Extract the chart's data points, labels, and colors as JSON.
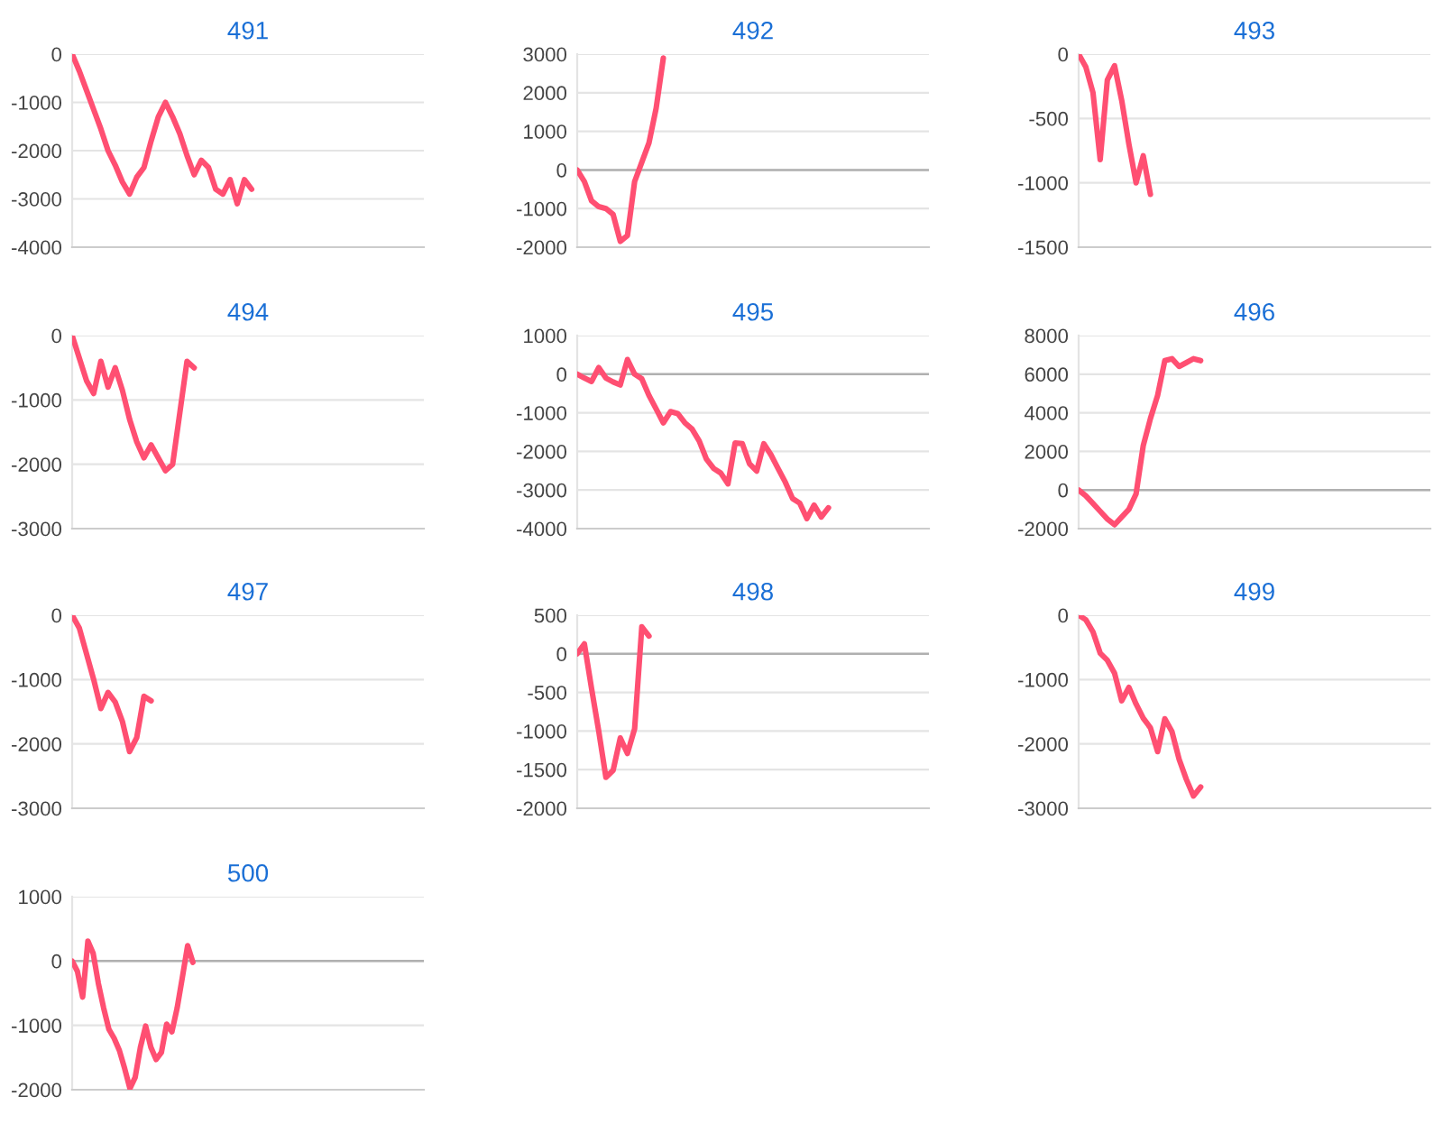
{
  "chart_data": [
    {
      "type": "line",
      "title": "491",
      "color": "#ff4f72",
      "ylim": [
        -4000,
        0
      ],
      "yticks": [
        -4000,
        -3000,
        -2000,
        -1000,
        0
      ],
      "grid": "y",
      "tick_labels": "y",
      "categories": [
        null,
        null,
        null,
        null,
        null,
        null,
        null,
        null,
        null,
        null,
        null,
        null,
        null,
        null,
        null,
        null,
        null,
        null,
        null,
        null,
        null,
        null,
        null,
        null,
        null,
        null,
        null,
        null,
        null,
        null,
        null,
        null,
        null,
        null,
        null,
        null,
        null,
        null,
        null,
        null,
        null,
        null,
        null,
        null,
        null,
        null,
        null,
        null,
        null,
        null
      ],
      "values": [
        0,
        -350,
        -750,
        -1150,
        -1550,
        -2000,
        -2300,
        -2650,
        -2900,
        -2550,
        -2350,
        -1800,
        -1300,
        -1000,
        -1300,
        -1650,
        -2100,
        -2500,
        -2200,
        -2350,
        -2800,
        -2900,
        -2600,
        -3100,
        -2600,
        -2800,
        null,
        null,
        null,
        null,
        null,
        null,
        null,
        null,
        null,
        null,
        null,
        null,
        null,
        null,
        null,
        null,
        null,
        null,
        null,
        null,
        null,
        null,
        null,
        null
      ]
    },
    {
      "type": "line",
      "title": "492",
      "color": "#ff4f72",
      "ylim": [
        -2000,
        3000
      ],
      "yticks": [
        -2000,
        -1000,
        0,
        1000,
        2000,
        3000
      ],
      "grid": "y",
      "tick_labels": "y",
      "categories": [
        null,
        null,
        null,
        null,
        null,
        null,
        null,
        null,
        null,
        null,
        null,
        null,
        null,
        null,
        null,
        null,
        null,
        null,
        null,
        null,
        null,
        null,
        null,
        null,
        null,
        null,
        null,
        null,
        null,
        null,
        null,
        null,
        null,
        null,
        null,
        null,
        null,
        null,
        null,
        null,
        null,
        null,
        null,
        null,
        null,
        null,
        null,
        null,
        null,
        null
      ],
      "values": [
        0,
        -300,
        -800,
        -950,
        -1000,
        -1150,
        -1850,
        -1700,
        -300,
        200,
        700,
        1600,
        2900,
        null,
        null,
        null,
        null,
        null,
        null,
        null,
        null,
        null,
        null,
        null,
        null,
        null,
        null,
        null,
        null,
        null,
        null,
        null,
        null,
        null,
        null,
        null,
        null,
        null,
        null,
        null,
        null,
        null,
        null,
        null,
        null,
        null,
        null,
        null,
        null,
        null
      ]
    },
    {
      "type": "line",
      "title": "493",
      "color": "#ff4f72",
      "ylim": [
        -1500,
        0
      ],
      "yticks": [
        -1500,
        -1000,
        -500,
        0
      ],
      "grid": "y",
      "tick_labels": "y",
      "categories": [
        null,
        null,
        null,
        null,
        null,
        null,
        null,
        null,
        null,
        null,
        null,
        null,
        null,
        null,
        null,
        null,
        null,
        null,
        null,
        null,
        null,
        null,
        null,
        null,
        null,
        null,
        null,
        null,
        null,
        null,
        null,
        null,
        null,
        null,
        null,
        null,
        null,
        null,
        null,
        null,
        null,
        null,
        null,
        null,
        null,
        null,
        null,
        null,
        null,
        null
      ],
      "values": [
        0,
        -100,
        -300,
        -820,
        -200,
        -90,
        -360,
        -700,
        -1000,
        -790,
        -1090,
        null,
        null,
        null,
        null,
        null,
        null,
        null,
        null,
        null,
        null,
        null,
        null,
        null,
        null,
        null,
        null,
        null,
        null,
        null,
        null,
        null,
        null,
        null,
        null,
        null,
        null,
        null,
        null,
        null,
        null,
        null,
        null,
        null,
        null,
        null,
        null,
        null,
        null,
        null
      ]
    },
    {
      "type": "line",
      "title": "494",
      "color": "#ff4f72",
      "ylim": [
        -3000,
        0
      ],
      "yticks": [
        -3000,
        -2000,
        -1000,
        0
      ],
      "grid": "y",
      "tick_labels": "y",
      "categories": [
        null,
        null,
        null,
        null,
        null,
        null,
        null,
        null,
        null,
        null,
        null,
        null,
        null,
        null,
        null,
        null,
        null,
        null,
        null,
        null,
        null,
        null,
        null,
        null,
        null,
        null,
        null,
        null,
        null,
        null,
        null,
        null,
        null,
        null,
        null,
        null,
        null,
        null,
        null,
        null,
        null,
        null,
        null,
        null,
        null,
        null,
        null,
        null,
        null,
        null
      ],
      "values": [
        0,
        -350,
        -700,
        -900,
        -400,
        -800,
        -500,
        -850,
        -1300,
        -1650,
        -1900,
        -1700,
        -1900,
        -2100,
        -2000,
        -1200,
        -400,
        -500,
        null,
        null,
        null,
        null,
        null,
        null,
        null,
        null,
        null,
        null,
        null,
        null,
        null,
        null,
        null,
        null,
        null,
        null,
        null,
        null,
        null,
        null,
        null,
        null,
        null,
        null,
        null,
        null,
        null,
        null,
        null,
        null
      ]
    },
    {
      "type": "line",
      "title": "495",
      "color": "#ff4f72",
      "ylim": [
        -4000,
        1000
      ],
      "yticks": [
        -4000,
        -3000,
        -2000,
        -1000,
        0,
        1000
      ],
      "grid": "y",
      "tick_labels": "y",
      "categories": [
        null,
        null,
        null,
        null,
        null,
        null,
        null,
        null,
        null,
        null,
        null,
        null,
        null,
        null,
        null,
        null,
        null,
        null,
        null,
        null,
        null,
        null,
        null,
        null,
        null,
        null,
        null,
        null,
        null,
        null,
        null,
        null,
        null,
        null,
        null,
        null,
        null,
        null,
        null,
        null,
        null,
        null,
        null,
        null,
        null,
        null,
        null,
        null,
        null,
        null
      ],
      "values": [
        0,
        -100,
        -190,
        170,
        -100,
        -200,
        -280,
        380,
        0,
        -120,
        -550,
        -900,
        -1260,
        -970,
        -1020,
        -1260,
        -1420,
        -1730,
        -2200,
        -2440,
        -2560,
        -2840,
        -1780,
        -1800,
        -2320,
        -2510,
        -1800,
        -2090,
        -2450,
        -2800,
        -3220,
        -3340,
        -3740,
        -3390,
        -3700,
        -3460,
        null,
        null,
        null,
        null,
        null,
        null,
        null,
        null,
        null,
        null,
        null,
        null,
        null,
        null
      ]
    },
    {
      "type": "line",
      "title": "496",
      "color": "#ff4f72",
      "ylim": [
        -2000,
        8000
      ],
      "yticks": [
        -2000,
        0,
        2000,
        4000,
        6000,
        8000
      ],
      "grid": "y",
      "tick_labels": "y",
      "categories": [
        null,
        null,
        null,
        null,
        null,
        null,
        null,
        null,
        null,
        null,
        null,
        null,
        null,
        null,
        null,
        null,
        null,
        null,
        null,
        null,
        null,
        null,
        null,
        null,
        null,
        null,
        null,
        null,
        null,
        null,
        null,
        null,
        null,
        null,
        null,
        null,
        null,
        null,
        null,
        null,
        null,
        null,
        null,
        null,
        null,
        null,
        null,
        null,
        null,
        null
      ],
      "values": [
        0,
        -300,
        -700,
        -1100,
        -1500,
        -1800,
        -1400,
        -1000,
        -200,
        2300,
        3700,
        4900,
        6700,
        6800,
        6400,
        6600,
        6800,
        6700,
        null,
        null,
        null,
        null,
        null,
        null,
        null,
        null,
        null,
        null,
        null,
        null,
        null,
        null,
        null,
        null,
        null,
        null,
        null,
        null,
        null,
        null,
        null,
        null,
        null,
        null,
        null,
        null,
        null,
        null,
        null,
        null
      ]
    },
    {
      "type": "line",
      "title": "497",
      "color": "#ff4f72",
      "ylim": [
        -3000,
        0
      ],
      "yticks": [
        -3000,
        -2000,
        -1000,
        0
      ],
      "grid": "y",
      "tick_labels": "y",
      "categories": [
        null,
        null,
        null,
        null,
        null,
        null,
        null,
        null,
        null,
        null,
        null,
        null,
        null,
        null,
        null,
        null,
        null,
        null,
        null,
        null,
        null,
        null,
        null,
        null,
        null,
        null,
        null,
        null,
        null,
        null,
        null,
        null,
        null,
        null,
        null,
        null,
        null,
        null,
        null,
        null,
        null,
        null,
        null,
        null,
        null,
        null,
        null,
        null,
        null,
        null
      ],
      "values": [
        0,
        -200,
        -600,
        -1000,
        -1450,
        -1200,
        -1350,
        -1650,
        -2120,
        -1900,
        -1260,
        -1330,
        null,
        null,
        null,
        null,
        null,
        null,
        null,
        null,
        null,
        null,
        null,
        null,
        null,
        null,
        null,
        null,
        null,
        null,
        null,
        null,
        null,
        null,
        null,
        null,
        null,
        null,
        null,
        null,
        null,
        null,
        null,
        null,
        null,
        null,
        null,
        null,
        null,
        null
      ]
    },
    {
      "type": "line",
      "title": "498",
      "color": "#ff4f72",
      "ylim": [
        -2000,
        500
      ],
      "yticks": [
        -2000,
        -1500,
        -1000,
        -500,
        0,
        500
      ],
      "grid": "y",
      "tick_labels": "y",
      "categories": [
        null,
        null,
        null,
        null,
        null,
        null,
        null,
        null,
        null,
        null,
        null,
        null,
        null,
        null,
        null,
        null,
        null,
        null,
        null,
        null,
        null,
        null,
        null,
        null,
        null,
        null,
        null,
        null,
        null,
        null,
        null,
        null,
        null,
        null,
        null,
        null,
        null,
        null,
        null,
        null,
        null,
        null,
        null,
        null,
        null,
        null,
        null,
        null,
        null,
        null
      ],
      "values": [
        0,
        130,
        -450,
        -1000,
        -1600,
        -1510,
        -1090,
        -1290,
        -970,
        350,
        230,
        null,
        null,
        null,
        null,
        null,
        null,
        null,
        null,
        null,
        null,
        null,
        null,
        null,
        null,
        null,
        null,
        null,
        null,
        null,
        null,
        null,
        null,
        null,
        null,
        null,
        null,
        null,
        null,
        null,
        null,
        null,
        null,
        null,
        null,
        null,
        null,
        null,
        null,
        null
      ]
    },
    {
      "type": "line",
      "title": "499",
      "color": "#ff4f72",
      "ylim": [
        -3000,
        0
      ],
      "yticks": [
        -3000,
        -2000,
        -1000,
        0
      ],
      "grid": "y",
      "tick_labels": "y",
      "categories": [
        null,
        null,
        null,
        null,
        null,
        null,
        null,
        null,
        null,
        null,
        null,
        null,
        null,
        null,
        null,
        null,
        null,
        null,
        null,
        null,
        null,
        null,
        null,
        null,
        null,
        null,
        null,
        null,
        null,
        null,
        null,
        null,
        null,
        null,
        null,
        null,
        null,
        null,
        null,
        null,
        null,
        null,
        null,
        null,
        null,
        null,
        null,
        null,
        null,
        null
      ],
      "values": [
        0,
        -70,
        -260,
        -590,
        -700,
        -900,
        -1330,
        -1120,
        -1380,
        -1600,
        -1750,
        -2120,
        -1610,
        -1810,
        -2240,
        -2550,
        -2810,
        -2670,
        null,
        null,
        null,
        null,
        null,
        null,
        null,
        null,
        null,
        null,
        null,
        null,
        null,
        null,
        null,
        null,
        null,
        null,
        null,
        null,
        null,
        null,
        null,
        null,
        null,
        null,
        null,
        null,
        null,
        null,
        null,
        null
      ]
    },
    {
      "type": "line",
      "title": "500",
      "color": "#ff4f72",
      "ylim": [
        -2000,
        1000
      ],
      "yticks": [
        -2000,
        -1000,
        0,
        1000
      ],
      "grid": "y",
      "tick_labels": "y",
      "categories": [
        null,
        null,
        null,
        null,
        null,
        null,
        null,
        null,
        null,
        null,
        null,
        null,
        null,
        null,
        null,
        null,
        null,
        null,
        null,
        null,
        null,
        null,
        null,
        null,
        null,
        null,
        null,
        null,
        null,
        null,
        null,
        null,
        null,
        null,
        null,
        null,
        null,
        null,
        null,
        null,
        null,
        null,
        null,
        null,
        null,
        null,
        null,
        null,
        null,
        null,
        null,
        null,
        null,
        null,
        null,
        null,
        null,
        null,
        null,
        null,
        null,
        null,
        null,
        null,
        null,
        null,
        null,
        null
      ],
      "values": [
        0,
        -160,
        -560,
        310,
        120,
        -350,
        -730,
        -1060,
        -1200,
        -1390,
        -1670,
        -1980,
        -1810,
        -1340,
        -1010,
        -1340,
        -1530,
        -1420,
        -980,
        -1100,
        -730,
        -250,
        240,
        -20,
        null,
        null,
        null,
        null,
        null,
        null,
        null,
        null,
        null,
        null,
        null,
        null,
        null,
        null,
        null,
        null,
        null,
        null,
        null,
        null,
        null,
        null,
        null,
        null,
        null,
        null,
        null,
        null,
        null,
        null,
        null,
        null,
        null,
        null,
        null,
        null,
        null,
        null,
        null,
        null,
        null,
        null,
        null,
        null
      ]
    }
  ]
}
